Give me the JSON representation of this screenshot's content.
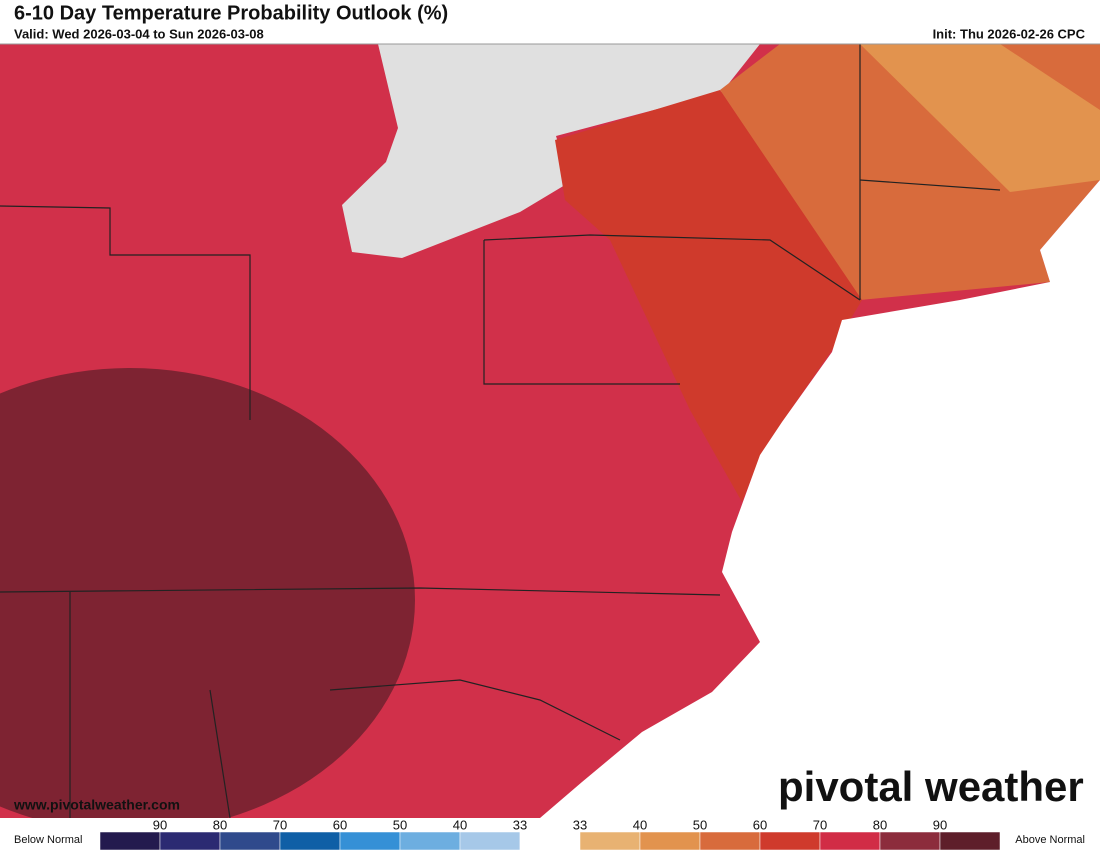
{
  "header": {
    "title": "6-10 Day Temperature Probability Outlook (%)",
    "valid": "Valid: Wed 2026-03-04 to Sun 2026-03-08",
    "init": "Init: Thu 2026-02-26 CPC"
  },
  "map": {
    "website": "www.pivotalweather.com",
    "logo": "pivotal weather"
  },
  "legend": {
    "below_label": "Below Normal",
    "above_label": "Above Normal",
    "colors": [
      "#231a4e",
      "#2b2a72",
      "#2f4a8c",
      "#0f5fa6",
      "#3590d6",
      "#6daee0",
      "#a6c8e8",
      "#ffffff",
      "#e8b272",
      "#e2934e",
      "#d86b3c",
      "#cf3a2c",
      "#d12c46",
      "#8c2c3c",
      "#5e1e2a"
    ],
    "ticks": [
      "90",
      "80",
      "70",
      "60",
      "50",
      "40",
      "33",
      "33",
      "40",
      "50",
      "60",
      "70",
      "80",
      "90"
    ]
  }
}
